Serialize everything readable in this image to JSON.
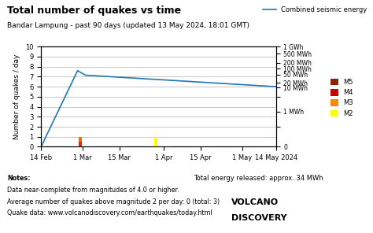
{
  "chart_data": {
    "type": "bar",
    "title": "Total number of quakes vs time",
    "subtitle": "Bandar Lampung - past 90 days (updated 13 May 2024, 18:01 GMT)",
    "y_label": "Number of quakes / day",
    "xlim": [
      0,
      90
    ],
    "xticks": [
      {
        "value": 0,
        "label": "14 Feb"
      },
      {
        "value": 16,
        "label": "1 Mar"
      },
      {
        "value": 30,
        "label": "15 Mar"
      },
      {
        "value": 47,
        "label": "1 Apr"
      },
      {
        "value": 61,
        "label": "15 Apr"
      },
      {
        "value": 77,
        "label": "1 May"
      },
      {
        "value": 90,
        "label": "14 May 2024"
      }
    ],
    "ylim": [
      0,
      10
    ],
    "yticks": [
      0,
      1,
      2,
      3,
      4,
      5,
      6,
      7,
      8,
      9,
      10
    ],
    "y2lim": [
      0,
      10
    ],
    "y2ticks": [
      {
        "value": 10,
        "label": "1 GWh"
      },
      {
        "value": 9.3,
        "label": "500 MWh"
      },
      {
        "value": 8.4,
        "label": "200 MWh"
      },
      {
        "value": 7.8,
        "label": "100 MWh"
      },
      {
        "value": 7.2,
        "label": "50 MWh"
      },
      {
        "value": 6.4,
        "label": "20 MWh"
      },
      {
        "value": 5.9,
        "label": "10 MWh"
      },
      {
        "value": 5.0,
        "label": null
      },
      {
        "value": 3.5,
        "label": "1 MWh"
      },
      {
        "value": 2.0,
        "label": null
      },
      0
    ],
    "grid": true,
    "stacked": true,
    "legend": "upper right",
    "series": [
      {
        "name": "Combined seismic energy",
        "type": "line",
        "x": [
          0,
          14,
          17,
          90
        ],
        "values": [
          0,
          7.6,
          7.15,
          6.0
        ]
      }
    ],
    "bars": [
      {
        "x": 15,
        "values": [
          0.5,
          0.5
        ],
        "colors": [
          "#cc3300",
          "#ff6600"
        ]
      },
      {
        "x": 44,
        "values": [
          1.0
        ],
        "colors": [
          "#ffff00"
        ]
      }
    ],
    "magnitudes": [
      {
        "name": "M5",
        "color": "#8B2500"
      },
      {
        "name": "M4",
        "color": "#cc0000"
      },
      {
        "name": "M3",
        "color": "#ff8800"
      },
      {
        "name": "M2",
        "color": "#ffff00"
      }
    ],
    "notes": [
      "Notes:",
      "Data near-complete from magnitudes of 4.0 or higher.",
      "Average number of quakes above magnitude 2 per day: 0 (total: 3)",
      "Quake data: www.volcanodiscovery.com/earthquakes/today.html"
    ],
    "annotations": [
      "Total energy released: approx. 34 MWh"
    ],
    "logo": [
      "VOLCANO",
      "DISCOVERY"
    ]
  }
}
